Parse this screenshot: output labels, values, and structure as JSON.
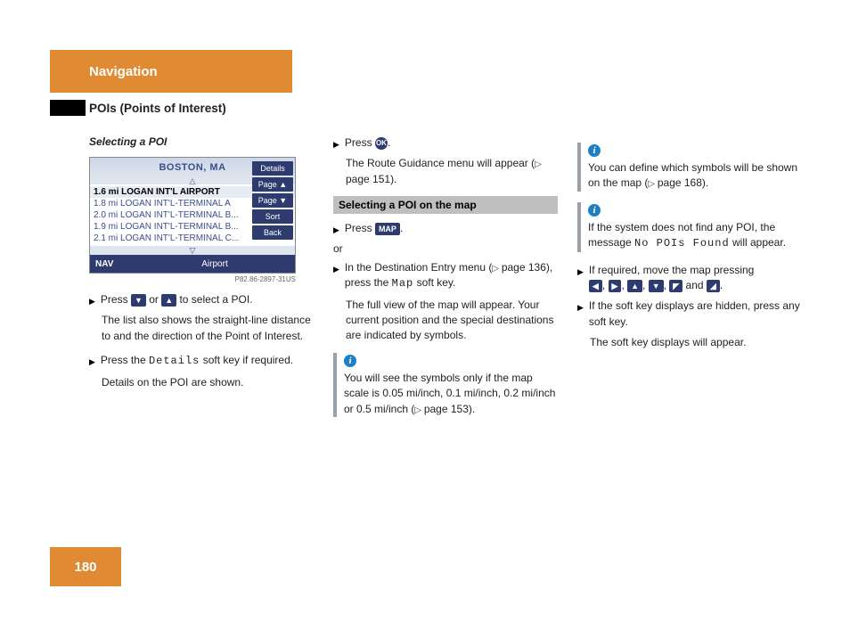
{
  "header": {
    "title": "Navigation"
  },
  "subtitle": "POIs (Points of Interest)",
  "pageNumber": "180",
  "col1": {
    "sectionTitle": "Selecting a POI",
    "screen": {
      "city": "BOSTON, MA",
      "rows": [
        {
          "dist": "1.6 mi",
          "name": "LOGAN INT'L AIRPORT",
          "selected": true
        },
        {
          "dist": "1.8 mi",
          "name": "LOGAN INT'L-TERMINAL A",
          "selected": false
        },
        {
          "dist": "2.0 mi",
          "name": "LOGAN INT'L-TERMINAL B...",
          "selected": false
        },
        {
          "dist": "1.9 mi",
          "name": "LOGAN INT'L-TERMINAL B...",
          "selected": false
        },
        {
          "dist": "2.1 mi",
          "name": "LOGAN INT'L-TERMINAL C...",
          "selected": false
        }
      ],
      "sideButtons": [
        "Details",
        "Page ▲",
        "Page ▼",
        "Sort",
        "Back"
      ],
      "bottomLeft": "NAV",
      "bottomCenter": "Airport",
      "imgCode": "P82.86-2897-31US"
    },
    "step1_a": "Press ",
    "step1_b": " or ",
    "step1_c": " to select a POI.",
    "para1": "The list also shows the straight-line distance to and the direction of the Point of Interest.",
    "step2_a": "Press the ",
    "step2_soft": "Details",
    "step2_b": " soft key if required.",
    "para2": "Details on the POI are shown."
  },
  "col2": {
    "stepA_a": "Press ",
    "stepA_b": ".",
    "paraA_a": "The Route Guidance menu will appear (",
    "paraA_ref": "page 151",
    "paraA_b": ").",
    "secBar": "Selecting a POI on the map",
    "stepB_a": "Press ",
    "stepB_key": "MAP",
    "stepB_b": ".",
    "orText": "or",
    "stepC_a": "In the Destination Entry menu (",
    "stepC_ref": "page 136",
    "stepC_b": "), press the ",
    "stepC_soft": "Map",
    "stepC_c": " soft key.",
    "paraC": "The full view of the map will appear. Your current position and the special destinations are indicated by symbols.",
    "info_a": "You will see the symbols only if the map scale is 0.05 mi/inch, 0.1 mi/inch, 0.2 mi/inch or 0.5 mi/inch (",
    "info_ref": "page 153",
    "info_b": ")."
  },
  "col3": {
    "info1_a": "You can define which symbols will be shown on the map (",
    "info1_ref": "page 168",
    "info1_b": ").",
    "info2_a": "If the system does not find any POI, the message ",
    "info2_mono": "No POIs Found",
    "info2_b": " will appear.",
    "stepD_a": "If required, move the map pressing",
    "stepD_keys": [
      "◀",
      "▶",
      "▲",
      "▼",
      "◤",
      "◢"
    ],
    "stepD_sep": ", ",
    "stepD_and": " and ",
    "stepD_end": ".",
    "stepE": "If the soft key displays are hidden, press any soft key.",
    "paraE": "The soft key displays will appear."
  }
}
